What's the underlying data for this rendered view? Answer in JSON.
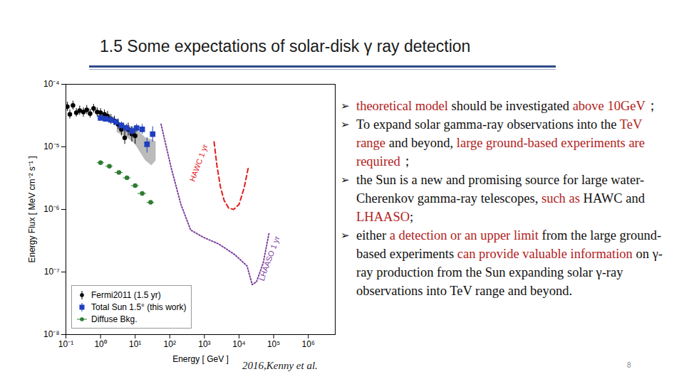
{
  "title": "1.5  Some expectations of solar-disk γ ray detection",
  "chart_data": {
    "type": "scatter",
    "log": true,
    "legend": "lower left",
    "x_label": "Energy [ GeV ]",
    "y_label": "Energy Flux [ MeV cm⁻² s⁻¹ ]",
    "xlim": [
      0.1,
      6000000
    ],
    "ylim": [
      1e-08,
      0.0001
    ],
    "xticks": [
      {
        "value": 0.1,
        "label": "10⁻¹"
      },
      {
        "value": 1,
        "label": "10⁰"
      },
      {
        "value": 10,
        "label": "10¹"
      },
      {
        "value": 100,
        "label": "10²"
      },
      {
        "value": 1000,
        "label": "10³"
      },
      {
        "value": 10000,
        "label": "10⁴"
      },
      {
        "value": 100000,
        "label": "10⁵"
      },
      {
        "value": 1000000,
        "label": "10⁶"
      }
    ],
    "yticks": [
      {
        "value": 1e-08,
        "label": "10⁻⁸"
      },
      {
        "value": 1e-07,
        "label": "10⁻⁷"
      },
      {
        "value": 1e-06,
        "label": "10⁻⁶"
      },
      {
        "value": 1e-05,
        "label": "10⁻⁵"
      },
      {
        "value": 0.0001,
        "label": "10⁻⁴"
      }
    ],
    "band": {
      "color": "#bbbbbb",
      "x": [
        3,
        6,
        10,
        20,
        30,
        40
      ],
      "low": [
        1.7e-05,
        1.4e-05,
        1.1e-05,
        6e-06,
        5e-06,
        6e-06
      ],
      "high": [
        2.4e-05,
        2.2e-05,
        2e-05,
        1.4e-05,
        1.3e-05,
        1.2e-05
      ]
    },
    "series": [
      {
        "name": "Fermi2011 (1.5 yr)",
        "type": "scatter",
        "marker": "circle",
        "color": "#000000",
        "x": [
          0.11,
          0.13,
          0.16,
          0.2,
          0.25,
          0.32,
          0.4,
          0.5,
          0.63,
          0.8,
          1.0,
          1.3,
          1.6,
          2.0,
          2.5,
          3.2,
          4.0,
          5.0,
          6.3,
          8.0,
          10
        ],
        "values": [
          4.4e-05,
          3.3e-05,
          4.6e-05,
          3.5e-05,
          3.8e-05,
          3.6e-05,
          3.9e-05,
          3.4e-05,
          4.1e-05,
          3.6e-05,
          3.5e-05,
          3.3e-05,
          3.1e-05,
          2.8e-05,
          2.6e-05,
          2.3e-05,
          1.9e-05,
          1.4e-05,
          1.9e-05,
          1.6e-05,
          1.5e-05
        ],
        "y_low": [
          3.7e-05,
          2.8e-05,
          3.9e-05,
          3e-05,
          3.2e-05,
          3e-05,
          3.3e-05,
          2.9e-05,
          3.5e-05,
          3e-05,
          3e-05,
          2.8e-05,
          2.6e-05,
          2.3e-05,
          2.2e-05,
          1.9e-05,
          1.5e-05,
          1.1e-05,
          1.5e-05,
          1.2e-05,
          1.1e-05
        ],
        "y_high": [
          5.2e-05,
          3.9e-05,
          5.4e-05,
          4.1e-05,
          4.5e-05,
          4.2e-05,
          4.6e-05,
          4e-05,
          4.8e-05,
          4.2e-05,
          4.1e-05,
          3.9e-05,
          3.7e-05,
          3.3e-05,
          3.1e-05,
          2.8e-05,
          2.4e-05,
          1.8e-05,
          2.4e-05,
          2.1e-05,
          2e-05
        ]
      },
      {
        "name": "Total Sun 1.5° (this work)",
        "type": "scatter",
        "marker": "square",
        "color": "#1f3fbf",
        "x": [
          1.0,
          1.4,
          2.0,
          2.8,
          4.0,
          5.6,
          8,
          11,
          16,
          22,
          32
        ],
        "values": [
          2.9e-05,
          2.8e-05,
          2.7e-05,
          2.5e-05,
          2.2e-05,
          2e-05,
          1.8e-05,
          2e-05,
          1.9e-05,
          1.1e-05,
          1.6e-05
        ],
        "y_low": [
          2.6e-05,
          2.5e-05,
          2.4e-05,
          2.2e-05,
          1.9e-05,
          1.7e-05,
          1.5e-05,
          1.7e-05,
          1.6e-05,
          8e-06,
          1.2e-05
        ],
        "y_high": [
          3.2e-05,
          3.1e-05,
          3e-05,
          2.8e-05,
          2.5e-05,
          2.3e-05,
          2.1e-05,
          2.3e-05,
          2.3e-05,
          1.4e-05,
          2.1e-05
        ]
      },
      {
        "name": "Diffuse Bkg.",
        "type": "scatter",
        "marker": "circle",
        "color": "#2e7d32",
        "x": [
          1.0,
          1.8,
          3.4,
          5.8,
          10,
          16,
          28
        ],
        "values": [
          5.6e-06,
          4.9e-06,
          3.9e-06,
          3.2e-06,
          2.4e-06,
          1.8e-06,
          1.3e-06
        ],
        "x_low": [
          0.8,
          1.4,
          2.6,
          4.5,
          7.7,
          12,
          22
        ],
        "x_high": [
          1.3,
          2.3,
          4.4,
          7.5,
          13,
          21,
          36
        ]
      },
      {
        "name": "HAWC 1 yr",
        "type": "line",
        "line_style": "dashed",
        "color": "#e41a1c",
        "x": [
          1900,
          2300,
          2900,
          3700,
          5000,
          7000,
          10000,
          14000,
          19000
        ],
        "values": [
          1.2e-05,
          5e-06,
          2.3e-06,
          1.4e-06,
          1.05e-06,
          1e-06,
          1.2e-06,
          2.2e-06,
          5e-06
        ]
      },
      {
        "name": "LHAASO 1 yr",
        "type": "line",
        "line_style": "dotted",
        "color": "#7b3fa0",
        "x": [
          56,
          110,
          210,
          400,
          920,
          2600,
          7500,
          17000,
          24000,
          32000,
          50000,
          73000
        ],
        "values": [
          2.3e-05,
          4.6e-06,
          1.2e-06,
          4.7e-07,
          3.6e-07,
          2.8e-07,
          1.9e-07,
          1.25e-07,
          6.3e-08,
          7e-08,
          1.4e-07,
          4.1e-07
        ]
      }
    ]
  },
  "bullets": [
    [
      {
        "text": "theoretical model",
        "emphasis": true
      },
      {
        "text": " should be investigated ",
        "emphasis": false
      },
      {
        "text": "above 10GeV",
        "emphasis": true
      },
      {
        "text": "；",
        "emphasis": false
      }
    ],
    [
      {
        "text": "To expand solar gamma-ray observations into the ",
        "emphasis": false
      },
      {
        "text": "TeV range",
        "emphasis": true
      },
      {
        "text": " and beyond, ",
        "emphasis": false
      },
      {
        "text": "large ground-based experiments are required",
        "emphasis": true
      },
      {
        "text": "；",
        "emphasis": false
      }
    ],
    [
      {
        "text": "the Sun is a new and promising source for large water-Cherenkov gamma-ray telescopes, ",
        "emphasis": false
      },
      {
        "text": "such as",
        "emphasis": true
      },
      {
        "text": " HAWC and ",
        "emphasis": false
      },
      {
        "text": "LHAASO",
        "emphasis": true
      },
      {
        "text": ";",
        "emphasis": false
      }
    ],
    [
      {
        "text": "either ",
        "emphasis": false
      },
      {
        "text": "a detection or an upper limit",
        "emphasis": true
      },
      {
        "text": " from the large ground-based experiments ",
        "emphasis": false
      },
      {
        "text": "can provide valuable information",
        "emphasis": true
      },
      {
        "text": " on γ-ray production from the Sun expanding solar γ-ray observations into TeV range and beyond.",
        "emphasis": false
      }
    ]
  ],
  "caption": "2016,Kenny et al.",
  "page_number": 8
}
